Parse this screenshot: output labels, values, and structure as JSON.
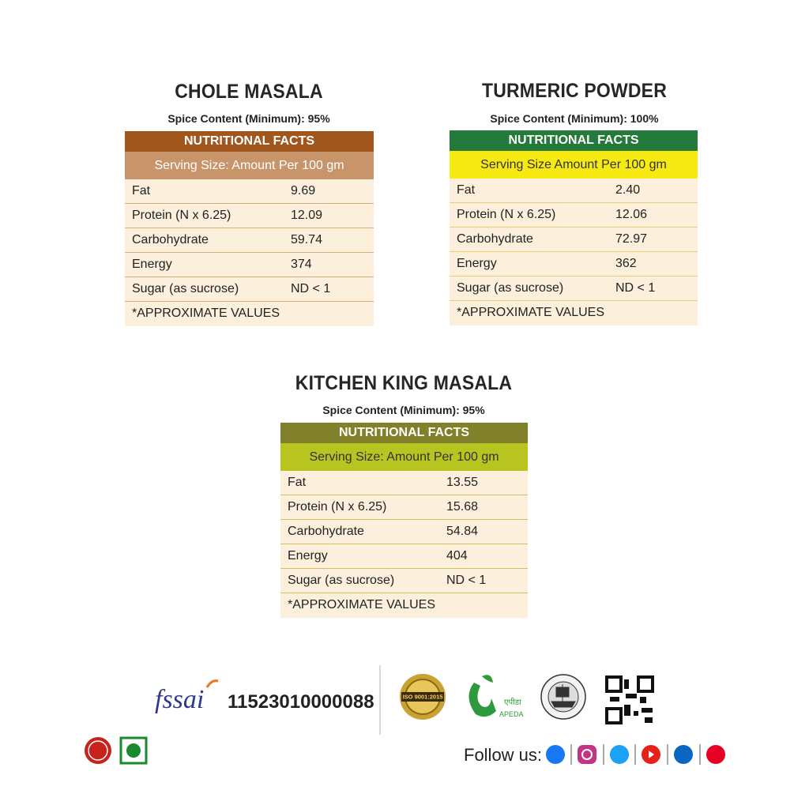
{
  "panels": [
    {
      "title": "CHOLE MASALA",
      "spice_content": "Spice Content (Minimum): 95%",
      "header": "NUTRITIONAL FACTS",
      "serving_size": "Serving Size: Amount Per 100 gm",
      "rows": [
        [
          "Fat",
          "9.69"
        ],
        [
          "Protein (N x 6.25)",
          "12.09"
        ],
        [
          "Carbohydrate",
          "59.74"
        ],
        [
          "Energy",
          "374"
        ],
        [
          "Sugar (as sucrose)",
          "ND < 1"
        ]
      ],
      "note": "*APPROXIMATE VALUES"
    },
    {
      "title": "TURMERIC POWDER",
      "spice_content": "Spice Content (Minimum): 100%",
      "header": "NUTRITIONAL FACTS",
      "serving_size": "Serving Size Amount Per 100 gm",
      "rows": [
        [
          "Fat",
          "2.40"
        ],
        [
          "Protein (N x 6.25)",
          "12.06"
        ],
        [
          "Carbohydrate",
          "72.97"
        ],
        [
          "Energy",
          "362"
        ],
        [
          "Sugar (as sucrose)",
          "ND < 1"
        ]
      ],
      "note": "*APPROXIMATE VALUES"
    },
    {
      "title": "KITCHEN KING MASALA",
      "spice_content": "Spice Content (Minimum): 95%",
      "header": "NUTRITIONAL FACTS",
      "serving_size": "Serving Size: Amount Per 100 gm",
      "rows": [
        [
          "Fat",
          "13.55"
        ],
        [
          "Protein (N x 6.25)",
          "15.68"
        ],
        [
          "Carbohydrate",
          "54.84"
        ],
        [
          "Energy",
          "404"
        ],
        [
          "Sugar (as sucrose)",
          "ND < 1"
        ]
      ],
      "note": "*APPROXIMATE VALUES"
    }
  ],
  "footer": {
    "fssai_logo": "fssai",
    "license_number": "11523010000088",
    "iso_badge": "ISO 9001:2015",
    "apeda_hindi": "एपीडा",
    "apeda_label": "APEDA",
    "follow_label": "Follow us:"
  }
}
